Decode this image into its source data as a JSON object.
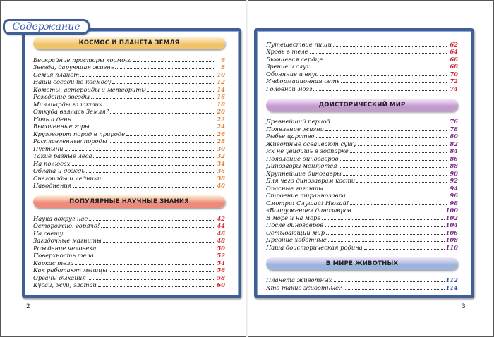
{
  "title": "Содержание",
  "page_left": "2",
  "page_right": "3",
  "colors": {
    "frame": "#3f5f96",
    "space": "#f2c46a",
    "science": "#ee8a7c",
    "prehistoric": "#c69ad0",
    "animals": "#9cb4dc",
    "num_space": "#e07a2a",
    "num_science": "#d0282e",
    "num_prehistoric": "#7a2a8a",
    "num_animals": "#2a4aa8"
  },
  "left_sections": [
    {
      "header": "КОСМОС И ПЛАНЕТА ЗЕМЛЯ",
      "items": [
        {
          "t": "Бескрайние просторы космоса",
          "p": "6"
        },
        {
          "t": "Звезда, дарующая жизнь",
          "p": "8"
        },
        {
          "t": "Семья планет",
          "p": "10"
        },
        {
          "t": "Наши соседи по космосу",
          "p": "12"
        },
        {
          "t": "Кометы, астероиды и метеориты",
          "p": "14"
        },
        {
          "t": "Рождение звезды",
          "p": "16"
        },
        {
          "t": "Миллиарды галактик",
          "p": "18"
        },
        {
          "t": "Откуда взялась Земля?",
          "p": "20"
        },
        {
          "t": "Ночь и день",
          "p": "22"
        },
        {
          "t": "Высоченные горы",
          "p": "24"
        },
        {
          "t": "Круговорот пород в природе",
          "p": "26"
        },
        {
          "t": "Расплавленные породы",
          "p": "28"
        },
        {
          "t": "Пустыни",
          "p": "30"
        },
        {
          "t": "Такие разные леса",
          "p": "32"
        },
        {
          "t": "На полюсах",
          "p": "34"
        },
        {
          "t": "Облака и дождь",
          "p": "36"
        },
        {
          "t": "Снегопады и ледники",
          "p": "38"
        },
        {
          "t": "Наводнения",
          "p": "40"
        }
      ]
    },
    {
      "header": "ПОПУЛЯРНЫЕ НАУЧНЫЕ ЗНАНИЯ",
      "items": [
        {
          "t": "Наука вокруг нас",
          "p": "42"
        },
        {
          "t": "Осторожно: горячо!",
          "p": "44"
        },
        {
          "t": "На свету",
          "p": "46"
        },
        {
          "t": "Загадочные магниты",
          "p": "48"
        },
        {
          "t": "Рождение человека",
          "p": "50"
        },
        {
          "t": "Поверхность тела",
          "p": "52"
        },
        {
          "t": "Каркас тела",
          "p": "54"
        },
        {
          "t": "Как работают мышцы",
          "p": "56"
        },
        {
          "t": "Органы дыхания",
          "p": "58"
        },
        {
          "t": "Кусай, жуй, глотай",
          "p": "60"
        }
      ]
    }
  ],
  "right_top_items": [
    {
      "t": "Путешествие пищи",
      "p": "62"
    },
    {
      "t": "Кровь в теле",
      "p": "64"
    },
    {
      "t": "Бьющееся сердце",
      "p": "66"
    },
    {
      "t": "Зрение и слух",
      "p": "68"
    },
    {
      "t": "Обоняние и вкус",
      "p": "70"
    },
    {
      "t": "Информационная сеть",
      "p": "72"
    },
    {
      "t": "Головной мозг",
      "p": "74"
    }
  ],
  "right_sections": [
    {
      "header": "ДОИСТОРИЧЕСКИЙ МИР",
      "items": [
        {
          "t": "Древнейший период",
          "p": "76"
        },
        {
          "t": "Появление жизни",
          "p": "78"
        },
        {
          "t": "Рыбье царство",
          "p": "80"
        },
        {
          "t": "Животные осваивают сушу",
          "p": "82"
        },
        {
          "t": "Их не увидишь в зоопарке",
          "p": "84"
        },
        {
          "t": "Появление динозавров",
          "p": "86"
        },
        {
          "t": "Динозавры меняются",
          "p": "88"
        },
        {
          "t": "Крупнейшие динозавры",
          "p": "90"
        },
        {
          "t": "Для чего динозаврам кости",
          "p": "92"
        },
        {
          "t": "Опасные гиганты",
          "p": "94"
        },
        {
          "t": "Строение тираннозавра",
          "p": "96"
        },
        {
          "t": "Смотри! Слушай! Нюхай!",
          "p": "98"
        },
        {
          "t": "«Вооружение» динозавров",
          "p": "100"
        },
        {
          "t": "В море и на море",
          "p": "102"
        },
        {
          "t": "После динозавров",
          "p": "104"
        },
        {
          "t": "Остывающий мир",
          "p": "106"
        },
        {
          "t": "Древние хоботные",
          "p": "108"
        },
        {
          "t": "Наша доисторическая родина",
          "p": "110"
        }
      ]
    },
    {
      "header": "В МИРЕ ЖИВОТНЫХ",
      "items": [
        {
          "t": "Планета животных",
          "p": "112"
        },
        {
          "t": "Кто такие животные?",
          "p": "114"
        }
      ]
    }
  ]
}
